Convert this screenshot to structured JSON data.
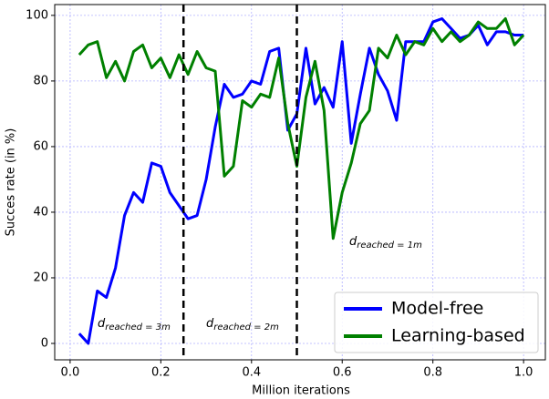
{
  "chart_data": {
    "type": "line",
    "xlabel": "Million iterations",
    "ylabel": "Succes rate (in %)",
    "x": [
      0.02,
      0.04,
      0.06,
      0.08,
      0.1,
      0.12,
      0.14,
      0.16,
      0.18,
      0.2,
      0.22,
      0.24,
      0.26,
      0.28,
      0.3,
      0.32,
      0.34,
      0.36,
      0.38,
      0.4,
      0.42,
      0.44,
      0.46,
      0.48,
      0.5,
      0.52,
      0.54,
      0.56,
      0.58,
      0.6,
      0.62,
      0.64,
      0.66,
      0.68,
      0.7,
      0.72,
      0.74,
      0.76,
      0.78,
      0.8,
      0.82,
      0.84,
      0.86,
      0.88,
      0.9,
      0.92,
      0.94,
      0.96,
      0.98,
      1.0
    ],
    "series": [
      {
        "name": "Model-free",
        "color": "#0000ff",
        "values": [
          3,
          0,
          16,
          14,
          23,
          39,
          46,
          43,
          55,
          54,
          46,
          42,
          38,
          39,
          50,
          66,
          79,
          75,
          76,
          80,
          79,
          89,
          90,
          65,
          70,
          90,
          73,
          78,
          72,
          92,
          61,
          76,
          90,
          82,
          77,
          68,
          92,
          92,
          92,
          98,
          99,
          96,
          93,
          94,
          97,
          91,
          95,
          95,
          94,
          94
        ]
      },
      {
        "name": "Learning-based",
        "color": "#008000",
        "values": [
          88,
          91,
          92,
          81,
          86,
          80,
          89,
          91,
          84,
          87,
          81,
          88,
          82,
          89,
          84,
          83,
          51,
          54,
          74,
          72,
          76,
          75,
          87,
          67,
          54,
          75,
          86,
          71,
          32,
          46,
          55,
          67,
          71,
          90,
          87,
          94,
          88,
          92,
          91,
          96,
          92,
          95,
          92,
          94,
          98,
          96,
          96,
          99,
          91,
          94
        ]
      }
    ],
    "vlines": [
      0.25,
      0.5
    ],
    "annotations": [
      {
        "text": "d",
        "subscript": "reached = 3m"
      },
      {
        "text": "d",
        "subscript": "reached = 2m"
      },
      {
        "text": "d",
        "subscript": "reached = 1m"
      }
    ],
    "xlim": [
      -0.034,
      1.048
    ],
    "ylim": [
      -5,
      103.3
    ],
    "xticks": [
      {
        "value": 0,
        "label": "0.0"
      },
      {
        "value": 0.2,
        "label": "0.2"
      },
      {
        "value": 0.4,
        "label": "0.4"
      },
      {
        "value": 0.6,
        "label": "0.6"
      },
      {
        "value": 0.8,
        "label": "0.8"
      },
      {
        "value": 1.0,
        "label": "1.0"
      }
    ],
    "yticks": [
      0,
      20,
      40,
      60,
      80,
      100
    ],
    "grid": true,
    "legend": "lower right"
  }
}
